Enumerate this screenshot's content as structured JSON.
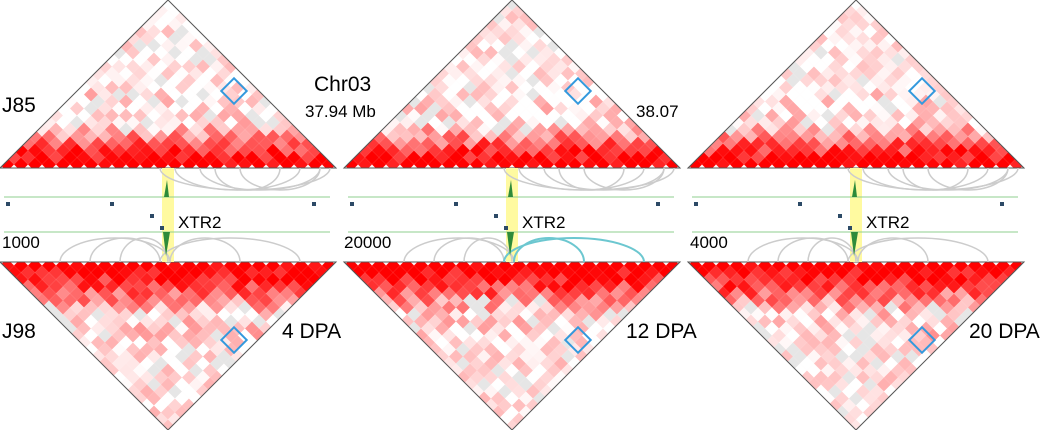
{
  "figure": {
    "chromosome": "Chr03",
    "start_label": "37.94 Mb",
    "end_label": "38.07",
    "gene_label": "XTR2",
    "top_sample": "J85",
    "bottom_sample": "J98",
    "colors": {
      "heatmap_high": "#ff0000",
      "heatmap_low": "#ffffff",
      "highlight_box": "#3399dd",
      "gene_highlight": "#fffaa0",
      "signal": "#2e8b3a",
      "track_line": "#8fcf8f",
      "loop": "#cccccc",
      "loop_highlight": "#6cc7d0"
    }
  },
  "panels": [
    {
      "stage": "4 DPA",
      "scale_label": "1000",
      "highlight_loops": false
    },
    {
      "stage": "12 DPA",
      "scale_label": "20000",
      "highlight_loops": true
    },
    {
      "stage": "20 DPA",
      "scale_label": "4000",
      "highlight_loops": false
    }
  ]
}
